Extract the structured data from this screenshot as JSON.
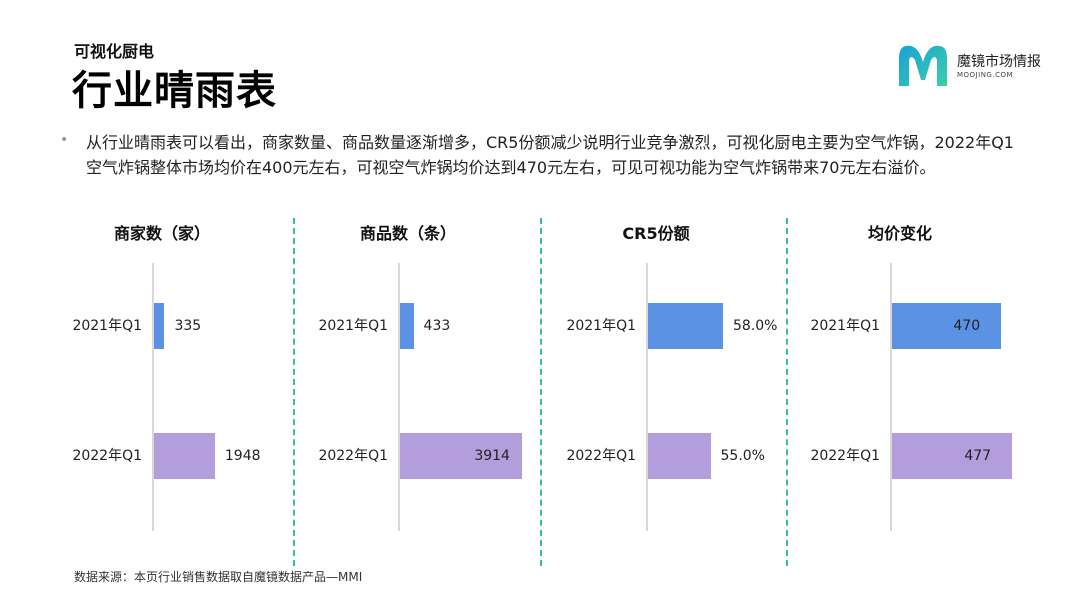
{
  "header": {
    "subtitle": "可视化厨电",
    "title": "行业晴雨表"
  },
  "logo": {
    "name": "魔镜市场情报",
    "url": "MOOJING.COM",
    "color_start": "#1aa0d8",
    "color_end": "#3ccfa8"
  },
  "summary": "从行业晴雨表可以看出，商家数量、商品数量逐渐增多，CR5份额减少说明行业竞争激烈，可视化厨电主要为空气炸锅，2022年Q1空气炸锅整体市场均价在400元左右，可视空气炸锅均价达到470元左右，可见可视功能为空气炸锅带来70元左右溢价。",
  "colors": {
    "q2021": "#5b92e3",
    "q2022": "#b39ddb",
    "divider": "#3cc08e"
  },
  "chart_data": [
    {
      "type": "bar",
      "title": "商家数（家）",
      "categories": [
        "2021年Q1",
        "2022年Q1"
      ],
      "values": [
        335,
        1948
      ],
      "labels": [
        "335",
        "1948"
      ],
      "xlim": [
        0,
        4000
      ]
    },
    {
      "type": "bar",
      "title": "商品数（条）",
      "categories": [
        "2021年Q1",
        "2022年Q1"
      ],
      "values": [
        433,
        3914
      ],
      "labels": [
        "433",
        "3914"
      ],
      "xlim": [
        0,
        4000
      ]
    },
    {
      "type": "bar",
      "title": "CR5份额",
      "categories": [
        "2021年Q1",
        "2022年Q1"
      ],
      "values": [
        58.0,
        55.0
      ],
      "labels": [
        "58.0%",
        "55.0%"
      ],
      "xlim": [
        40,
        70
      ]
    },
    {
      "type": "bar",
      "title": "均价变化",
      "categories": [
        "2021年Q1",
        "2022年Q1"
      ],
      "values": [
        470,
        477
      ],
      "labels": [
        "470",
        "477"
      ],
      "xlim": [
        400,
        480
      ]
    }
  ],
  "footer": "数据来源：本页行业销售数据取自魔镜数据产品—MMI"
}
